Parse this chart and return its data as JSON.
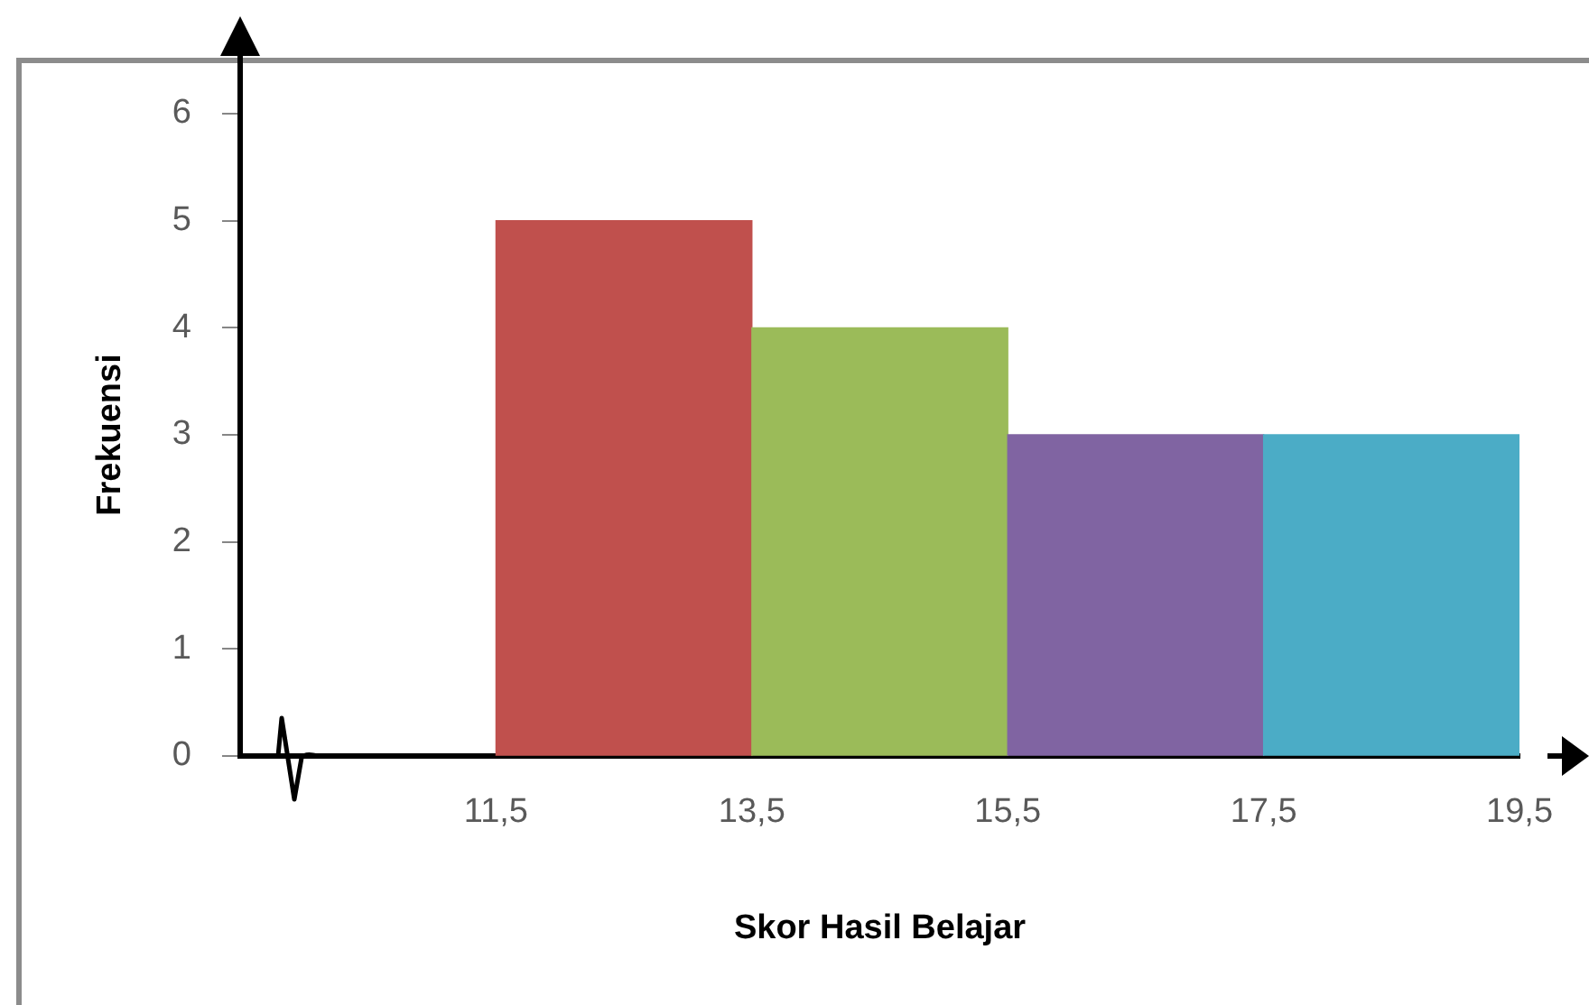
{
  "chart_data": {
    "type": "histogram",
    "xlabel": "Skor Hasil Belajar",
    "ylabel": "Frekuensi",
    "bins": [
      11.5,
      13.5,
      15.5,
      17.5,
      19.5
    ],
    "values": [
      5,
      4,
      3,
      3
    ],
    "colors": [
      "#c0504d",
      "#9bbb59",
      "#8064a2",
      "#4bacc6"
    ],
    "xlim": [
      9.5,
      19.5
    ],
    "ylim": [
      0,
      6
    ],
    "xticks": [
      {
        "value": 11.5,
        "label": "11,5"
      },
      {
        "value": 13.5,
        "label": "13,5"
      },
      {
        "value": 15.5,
        "label": "15,5"
      },
      {
        "value": 17.5,
        "label": "17,5"
      },
      {
        "value": 19.5,
        "label": "19,5"
      }
    ],
    "yticks": [
      0,
      1,
      2,
      3,
      4,
      5,
      6
    ]
  }
}
